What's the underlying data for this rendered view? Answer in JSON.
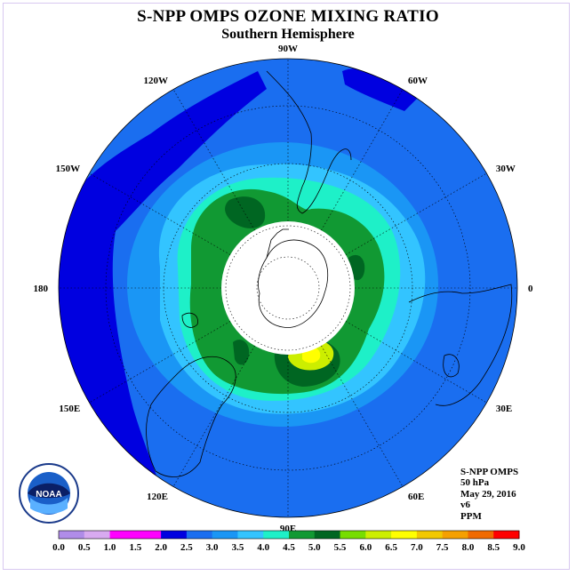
{
  "title": "S-NPP OMPS OZONE MIXING RATIO",
  "subtitle": "Southern Hemisphere",
  "longitude_labels": [
    {
      "text": "90W",
      "lon": -90
    },
    {
      "text": "60W",
      "lon": -60
    },
    {
      "text": "120W",
      "lon": -120
    },
    {
      "text": "30W",
      "lon": -30
    },
    {
      "text": "150W",
      "lon": -150
    },
    {
      "text": "0",
      "lon": 0
    },
    {
      "text": "180",
      "lon": 180
    },
    {
      "text": "30E",
      "lon": 30
    },
    {
      "text": "150E",
      "lon": 150
    },
    {
      "text": "60E",
      "lon": 60
    },
    {
      "text": "120E",
      "lon": 120
    },
    {
      "text": "90E",
      "lon": 90
    }
  ],
  "info": {
    "instrument": "S-NPP OMPS",
    "level": "50 hPa",
    "date": "May 29, 2016",
    "version": "v6",
    "units": "PPM"
  },
  "logo_text": "NOAA",
  "colorbar": {
    "ticks": [
      "0.0",
      "0.5",
      "1.0",
      "1.5",
      "2.0",
      "2.5",
      "3.0",
      "3.5",
      "4.0",
      "4.5",
      "5.0",
      "5.5",
      "6.0",
      "6.5",
      "7.0",
      "7.5",
      "8.0",
      "8.5",
      "9.0"
    ],
    "colors": [
      "#b08ce8",
      "#d8aaf0",
      "#ff00ff",
      "#ff00ff",
      "#0000e0",
      "#1a6ef0",
      "#1a96f5",
      "#33c4ff",
      "#1ef0c8",
      "#119933",
      "#006622",
      "#77dd00",
      "#ccee00",
      "#ffff00",
      "#f2c800",
      "#f5a000",
      "#f06a00",
      "#ff0000",
      "#8b5a3c"
    ]
  },
  "colors": {
    "outer_blue": "#1a6ef0",
    "dark_blue": "#0000e0",
    "mid_blue": "#1a96f5",
    "light_blue": "#33c4ff",
    "cyan": "#1ef0c8",
    "green": "#119933",
    "dark_green": "#006622",
    "yellow_green": "#ccee00",
    "yellow": "#ffff00"
  }
}
